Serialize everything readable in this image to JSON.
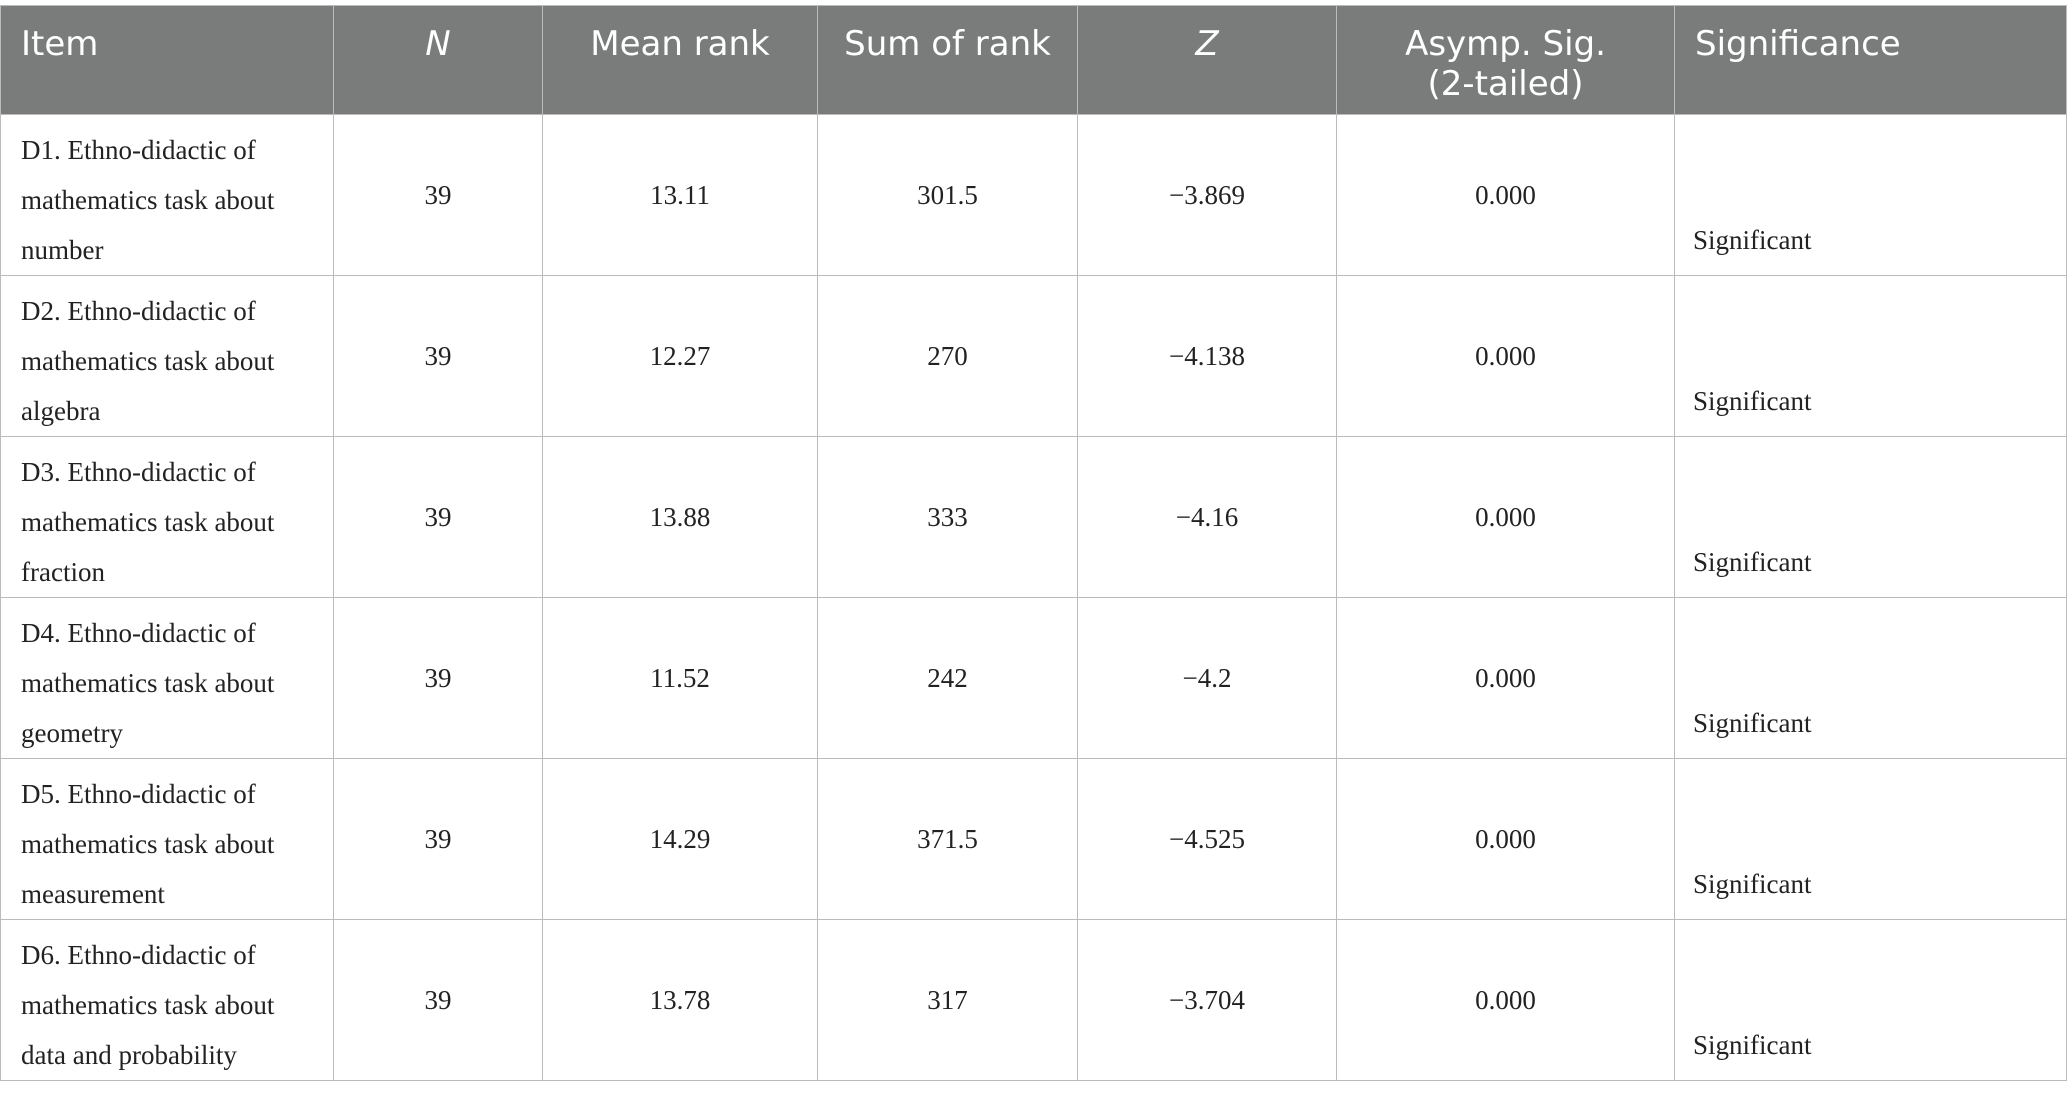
{
  "table": {
    "headers": {
      "item": "Item",
      "n": "N",
      "mean_rank": "Mean rank",
      "sum_of_rank": "Sum of rank",
      "z": "Z",
      "asymp_sig_line1": "Asymp. Sig.",
      "asymp_sig_line2": "(2-tailed)",
      "significance": "Significance"
    },
    "rows": [
      {
        "item_lines": [
          "D1. Ethno-didactic of",
          "mathematics task about",
          "number"
        ],
        "n": "39",
        "mean_rank": "13.11",
        "sum_of_rank": "301.5",
        "z": "−3.869",
        "asymp_sig": "0.000",
        "significance": "Significant"
      },
      {
        "item_lines": [
          "D2. Ethno-didactic of",
          "mathematics task about",
          "algebra"
        ],
        "n": "39",
        "mean_rank": "12.27",
        "sum_of_rank": "270",
        "z": "−4.138",
        "asymp_sig": "0.000",
        "significance": "Significant"
      },
      {
        "item_lines": [
          "D3. Ethno-didactic of",
          "mathematics task about",
          "fraction"
        ],
        "n": "39",
        "mean_rank": "13.88",
        "sum_of_rank": "333",
        "z": "−4.16",
        "asymp_sig": "0.000",
        "significance": "Significant"
      },
      {
        "item_lines": [
          "D4. Ethno-didactic of",
          "mathematics task about",
          "geometry"
        ],
        "n": "39",
        "mean_rank": "11.52",
        "sum_of_rank": "242",
        "z": "−4.2",
        "asymp_sig": "0.000",
        "significance": "Significant"
      },
      {
        "item_lines": [
          "D5. Ethno-didactic of",
          "mathematics task about",
          "measurement"
        ],
        "n": "39",
        "mean_rank": "14.29",
        "sum_of_rank": "371.5",
        "z": "−4.525",
        "asymp_sig": "0.000",
        "significance": "Significant"
      },
      {
        "item_lines": [
          "D6. Ethno-didactic of",
          "mathematics task about",
          "data and probability"
        ],
        "n": "39",
        "mean_rank": "13.78",
        "sum_of_rank": "317",
        "z": "−3.704",
        "asymp_sig": "0.000",
        "significance": "Significant"
      }
    ]
  },
  "colors": {
    "header_background": "#7a7c7b",
    "header_text": "#ffffff",
    "body_text": "#222222",
    "grid_line": "#b9bcbb"
  }
}
